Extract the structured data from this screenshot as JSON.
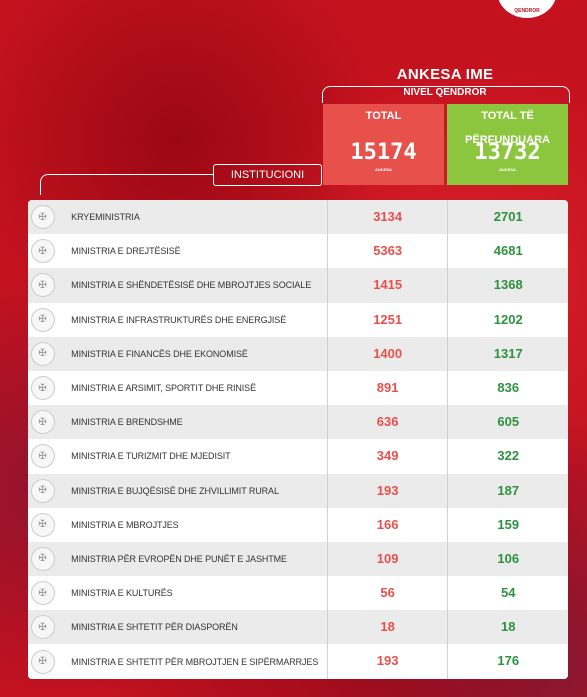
{
  "logo_text": "QENDROR",
  "header": {
    "title": "ANKESA IME",
    "subtitle": "NIVEL QENDROR"
  },
  "totals": {
    "total_label": "TOTAL",
    "total_value": "15174",
    "total_unit": "ANKESA",
    "done_label": "TOTAL TË PËRFUNDUARA",
    "done_value": "13732",
    "done_unit": "ANKESA"
  },
  "column_label": "INSTITUCIONI",
  "colors": {
    "total": "#e8504c",
    "done": "#8cc63e",
    "done_text": "#2e9140"
  },
  "rows": [
    {
      "name": "KRYEMINISTRIA",
      "total": "3134",
      "done": "2701"
    },
    {
      "name": "MINISTRIA E DREJTËSISË",
      "total": "5363",
      "done": "4681"
    },
    {
      "name": "MINISTRIA E SHËNDETËSISË  DHE MBROJTJES SOCIALE",
      "total": "1415",
      "done": "1368"
    },
    {
      "name": "MINISTRIA E INFRASTRUKTURËS DHE ENERGJISË",
      "total": "1251",
      "done": "1202"
    },
    {
      "name": "MINISTRIA E FINANCËS DHE EKONOMISË",
      "total": "1400",
      "done": "1317"
    },
    {
      "name": "MINISTRIA E ARSIMIT, SPORTIT DHE RINISË",
      "total": "891",
      "done": "836"
    },
    {
      "name": "MINISTRIA E BRENDSHME",
      "total": "636",
      "done": "605"
    },
    {
      "name": "MINISTRIA E TURIZMIT DHE MJEDISIT",
      "total": "349",
      "done": "322"
    },
    {
      "name": "MINISTRIA E BUJQËSISË  DHE ZHVILLIMIT RURAL",
      "total": "193",
      "done": "187"
    },
    {
      "name": "MINISTRIA E MBROJTJES",
      "total": "166",
      "done": "159"
    },
    {
      "name": "MINISTRIA PËR EVROPËN DHE PUNËT E  JASHTME",
      "total": "109",
      "done": "106"
    },
    {
      "name": "MINISTRIA E KULTURËS",
      "total": "56",
      "done": "54"
    },
    {
      "name": "MINISTRIA E SHTETIT PËR DIASPORËN",
      "total": "18",
      "done": "18"
    },
    {
      "name": "MINISTRIA E SHTETIT PËR MBROJTJEN E SIPËRMARRJES",
      "total": "193",
      "done": "176"
    }
  ]
}
